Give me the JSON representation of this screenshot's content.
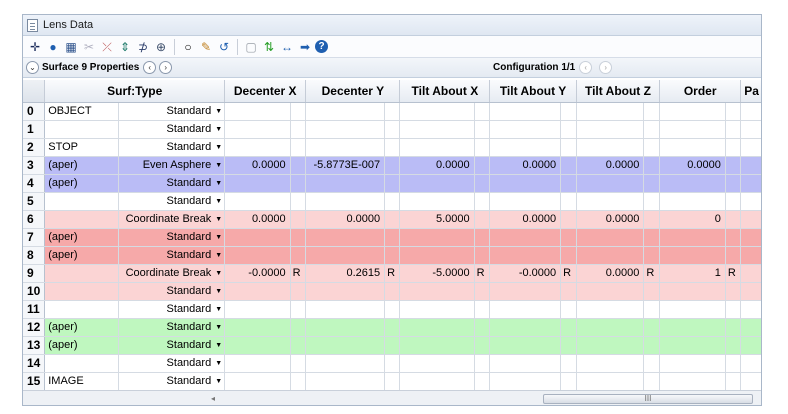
{
  "window": {
    "title": "Lens Data"
  },
  "toolbar": {
    "buttons": [
      {
        "icon": "crosshair-icon",
        "glyph": "✛",
        "color": "#1a2a5a"
      },
      {
        "icon": "globe-icon",
        "glyph": "●",
        "color": "#1f5fb0"
      },
      {
        "icon": "database-icon",
        "glyph": "▦",
        "color": "#2a4f8a"
      },
      {
        "icon": "scissors-icon",
        "glyph": "✂",
        "color": "#b0b0c0"
      },
      {
        "icon": "ray-icon",
        "glyph": "⤫",
        "color": "#c06060"
      },
      {
        "icon": "insert-surface-icon",
        "glyph": "⇕",
        "color": "#1e7a6a"
      },
      {
        "icon": "surface-icon",
        "glyph": "⊅",
        "color": "#2b3d6a"
      },
      {
        "icon": "merge-icon",
        "glyph": "⊕",
        "color": "#3b4d6a"
      },
      {
        "icon": "circle-icon",
        "glyph": "○",
        "color": "#000000"
      },
      {
        "icon": "pencil-icon",
        "glyph": "✎",
        "color": "#c08020"
      },
      {
        "icon": "rotate-icon",
        "glyph": "↺",
        "color": "#1f5fb0"
      },
      {
        "icon": "page-icon",
        "glyph": "▢",
        "color": "#9aa0a8"
      },
      {
        "icon": "swap-icon",
        "glyph": "⇅",
        "color": "#2aa02a"
      },
      {
        "icon": "horizontal-arrow-icon",
        "glyph": "↔",
        "color": "#1f5fb0"
      },
      {
        "icon": "right-arrow-icon",
        "glyph": "➡",
        "color": "#1f5fb0"
      },
      {
        "icon": "help-icon",
        "glyph": "?",
        "color": "#1f5fb0"
      }
    ]
  },
  "propbar": {
    "surface_properties": "Surface 9 Properties",
    "configuration": "Configuration 1/1"
  },
  "columns": [
    "Surf:Type",
    "Decenter X",
    "Decenter Y",
    "Tilt About X",
    "Tilt About Y",
    "Tilt About Z",
    "Order",
    "Pa"
  ],
  "rows": [
    {
      "n": "0",
      "comment": "OBJECT",
      "type": "Standard",
      "style": "white",
      "dx": "",
      "dy": "",
      "tx": "",
      "ty": "",
      "tz": "",
      "order": ""
    },
    {
      "n": "1",
      "comment": "",
      "type": "Standard",
      "style": "white",
      "dx": "",
      "dy": "",
      "tx": "",
      "ty": "",
      "tz": "",
      "order": ""
    },
    {
      "n": "2",
      "comment": "STOP",
      "type": "Standard",
      "style": "white",
      "dx": "",
      "dy": "",
      "tx": "",
      "ty": "",
      "tz": "",
      "order": ""
    },
    {
      "n": "3",
      "comment": "(aper)",
      "type": "Even Asphere",
      "style": "blue",
      "dx": "0.0000",
      "dy": "-5.8773E-007",
      "tx": "0.0000",
      "ty": "0.0000",
      "tz": "0.0000",
      "order": "0.0000"
    },
    {
      "n": "4",
      "comment": "(aper)",
      "type": "Standard",
      "style": "blue",
      "dx": "",
      "dy": "",
      "tx": "",
      "ty": "",
      "tz": "",
      "order": ""
    },
    {
      "n": "5",
      "comment": "",
      "type": "Standard",
      "style": "white",
      "dx": "",
      "dy": "",
      "tx": "",
      "ty": "",
      "tz": "",
      "order": ""
    },
    {
      "n": "6",
      "comment": "",
      "type": "Coordinate Break",
      "style": "pink",
      "dx": "0.0000",
      "dy": "0.0000",
      "tx": "5.0000",
      "ty": "0.0000",
      "tz": "0.0000",
      "order": "0"
    },
    {
      "n": "7",
      "comment": "(aper)",
      "type": "Standard",
      "style": "salmon",
      "dx": "",
      "dy": "",
      "tx": "",
      "ty": "",
      "tz": "",
      "order": ""
    },
    {
      "n": "8",
      "comment": "(aper)",
      "type": "Standard",
      "style": "salmon",
      "dx": "",
      "dy": "",
      "tx": "",
      "ty": "",
      "tz": "",
      "order": ""
    },
    {
      "n": "9",
      "comment": "",
      "type": "Coordinate Break",
      "style": "pink",
      "dx": "-0.0000",
      "dxs": "R",
      "dy": "0.2615",
      "dys": "R",
      "tx": "-5.0000",
      "txs": "R",
      "ty": "-0.0000",
      "tys": "R",
      "tz": "0.0000",
      "tzs": "R",
      "order": "1",
      "orders": "R"
    },
    {
      "n": "10",
      "comment": "",
      "type": "Standard",
      "style": "pink",
      "dx": "",
      "dy": "",
      "tx": "",
      "ty": "",
      "tz": "",
      "order": ""
    },
    {
      "n": "11",
      "comment": "",
      "type": "Standard",
      "style": "white",
      "dx": "",
      "dy": "",
      "tx": "",
      "ty": "",
      "tz": "",
      "order": ""
    },
    {
      "n": "12",
      "comment": "(aper)",
      "type": "Standard",
      "style": "green",
      "dx": "",
      "dy": "",
      "tx": "",
      "ty": "",
      "tz": "",
      "order": ""
    },
    {
      "n": "13",
      "comment": "(aper)",
      "type": "Standard",
      "style": "green",
      "dx": "",
      "dy": "",
      "tx": "",
      "ty": "",
      "tz": "",
      "order": ""
    },
    {
      "n": "14",
      "comment": "",
      "type": "Standard",
      "style": "white",
      "dx": "",
      "dy": "",
      "tx": "",
      "ty": "",
      "tz": "",
      "order": ""
    },
    {
      "n": "15",
      "comment": "IMAGE",
      "type": "Standard",
      "style": "white",
      "dx": "",
      "dy": "",
      "tx": "",
      "ty": "",
      "tz": "",
      "order": ""
    }
  ],
  "scrollbar": {
    "thumb_label": "III"
  },
  "colors": {
    "blue_row": "#babcf6",
    "pink_row": "#fbd4d4",
    "salmon_row": "#f6a9a9",
    "green_row": "#bff7bf"
  }
}
